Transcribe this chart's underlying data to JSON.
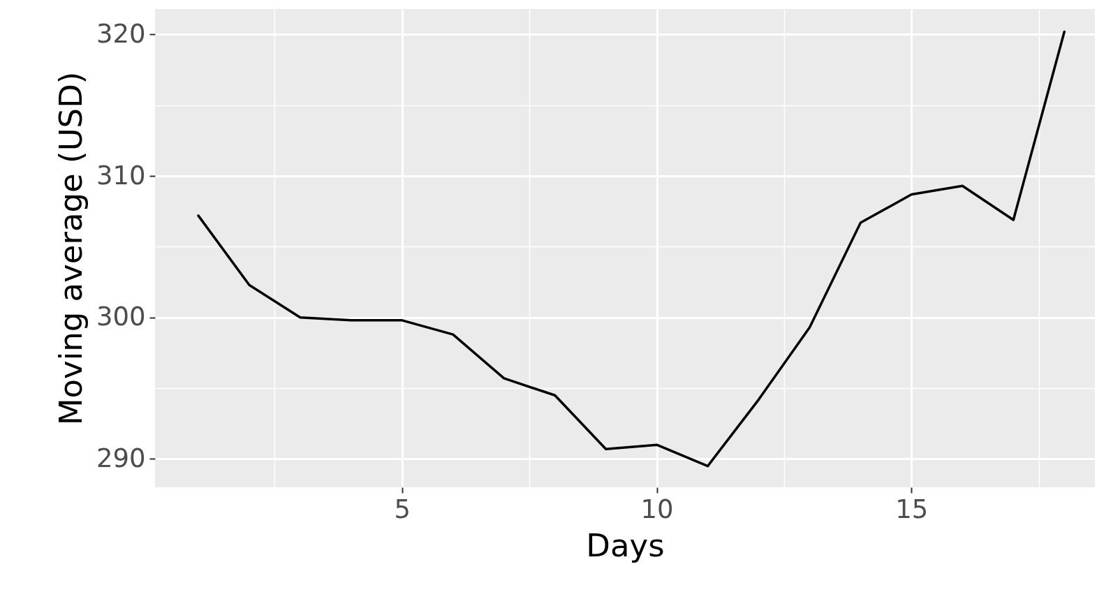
{
  "chart_data": {
    "type": "line",
    "xlabel": "Days",
    "ylabel": "Moving average (USD)",
    "x": [
      1,
      2,
      3,
      4,
      5,
      6,
      7,
      8,
      9,
      10,
      11,
      12,
      13,
      14,
      15,
      16,
      17,
      18
    ],
    "series": [
      {
        "color": "#000000",
        "values": [
          307.2,
          302.3,
          300.0,
          299.8,
          299.8,
          298.8,
          295.7,
          294.5,
          290.7,
          291.0,
          289.5,
          294.2,
          299.3,
          306.7,
          308.7,
          309.3,
          306.9,
          320.2
        ]
      }
    ],
    "xlim": [
      0.15,
      18.6
    ],
    "ylim": [
      288.0,
      321.8
    ],
    "xticks": [
      {
        "value": 2.5,
        "label": null
      },
      5,
      {
        "value": 7.5,
        "label": null
      },
      10,
      {
        "value": 12.5,
        "label": null
      },
      15,
      {
        "value": 17.5,
        "label": null
      }
    ],
    "yticks": [
      290,
      {
        "value": 295,
        "label": null
      },
      300,
      {
        "value": 305,
        "label": null
      },
      310,
      {
        "value": 315,
        "label": null
      },
      320
    ],
    "grid": true,
    "marker": "none",
    "line_style": "solid"
  }
}
